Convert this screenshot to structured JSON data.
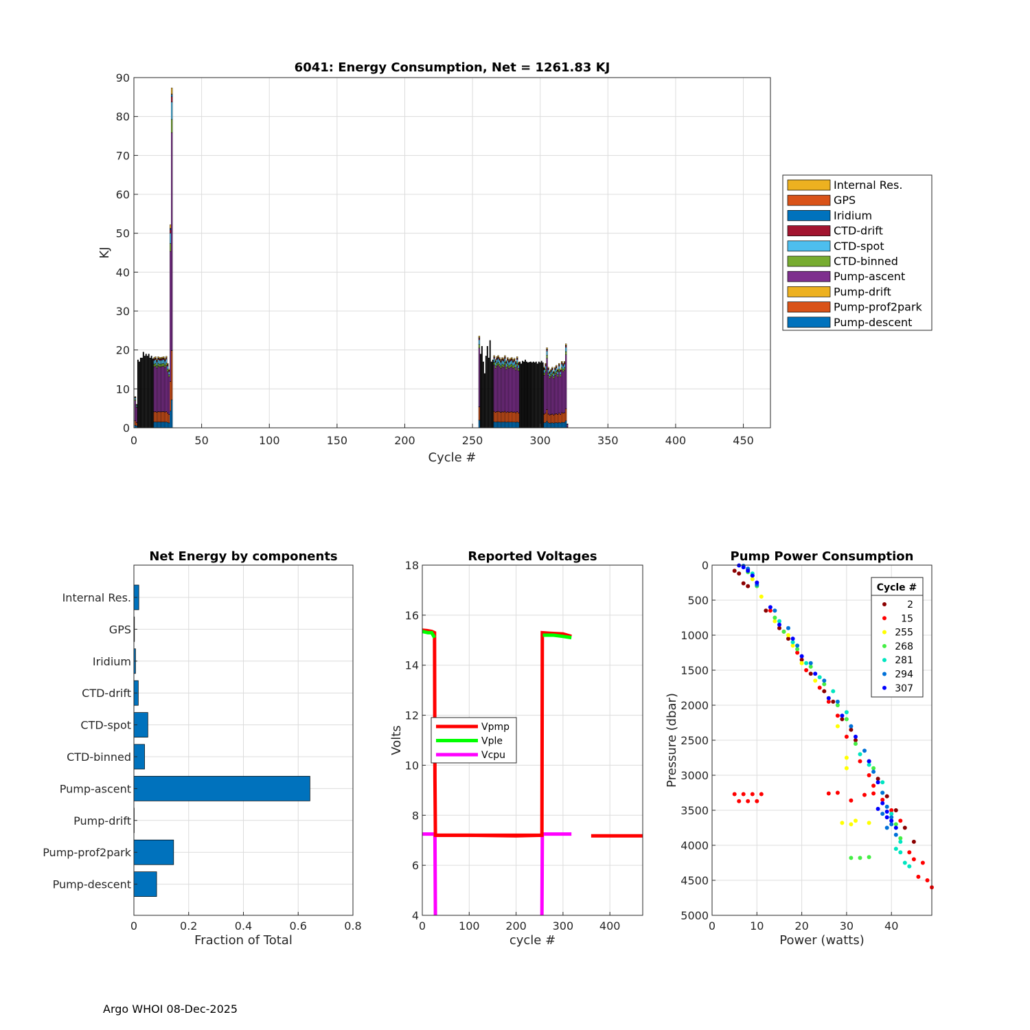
{
  "footer": "Argo WHOI 08-Dec-2025",
  "chart_data": [
    {
      "id": "energy",
      "type": "bar",
      "stacked": true,
      "title": "6041: Energy Consumption,  Net = 1261.83 KJ",
      "xlabel": "Cycle #",
      "ylabel": "KJ",
      "xlim": [
        0,
        470
      ],
      "ylim": [
        0,
        90
      ],
      "xticks": [
        0,
        50,
        100,
        150,
        200,
        250,
        300,
        350,
        400,
        450
      ],
      "yticks": [
        0,
        10,
        20,
        30,
        40,
        50,
        60,
        70,
        80,
        90
      ],
      "grid": true,
      "legend_placement": "right",
      "legend": [
        {
          "name": "Internal Res.",
          "color": "#EDB120"
        },
        {
          "name": "GPS",
          "color": "#D95319"
        },
        {
          "name": "Iridium",
          "color": "#0072BD"
        },
        {
          "name": "CTD-drift",
          "color": "#A2142F"
        },
        {
          "name": "CTD-spot",
          "color": "#4DBEEE"
        },
        {
          "name": "CTD-binned",
          "color": "#77AC30"
        },
        {
          "name": "Pump-ascent",
          "color": "#7E2F8E"
        },
        {
          "name": "Pump-drift",
          "color": "#EDB120"
        },
        {
          "name": "Pump-prof2park",
          "color": "#D95319"
        },
        {
          "name": "Pump-descent",
          "color": "#0072BD"
        }
      ],
      "component_order": [
        "Pump-descent",
        "Pump-prof2park",
        "Pump-drift",
        "Pump-ascent",
        "CTD-binned",
        "CTD-spot",
        "CTD-drift",
        "Iridium",
        "GPS",
        "Internal Res."
      ],
      "cycles": [
        1,
        2,
        3,
        4,
        5,
        6,
        7,
        8,
        9,
        10,
        11,
        12,
        13,
        14,
        15,
        16,
        17,
        18,
        19,
        20,
        21,
        22,
        23,
        24,
        25,
        26,
        27,
        28,
        255,
        256,
        257,
        258,
        259,
        260,
        261,
        262,
        263,
        264,
        265,
        266,
        267,
        268,
        269,
        270,
        271,
        272,
        273,
        274,
        275,
        276,
        277,
        278,
        279,
        280,
        281,
        282,
        283,
        284,
        285,
        286,
        287,
        288,
        289,
        290,
        291,
        292,
        293,
        294,
        295,
        296,
        297,
        298,
        299,
        300,
        301,
        302,
        303,
        304,
        305,
        306,
        307,
        308,
        309,
        310,
        311,
        312,
        313,
        314,
        315,
        316,
        317,
        318,
        319,
        320
      ],
      "totals": [
        8,
        6,
        17.5,
        17,
        18,
        18,
        19.5,
        18.5,
        19,
        18.5,
        19,
        18,
        18.5,
        17.8,
        18,
        18.2,
        17.6,
        18.2,
        18,
        18,
        18.1,
        18.2,
        17.8,
        18.3,
        16.5,
        15,
        52,
        87,
        23.5,
        19,
        21,
        17,
        14,
        18.5,
        21,
        18,
        22.5,
        17,
        17.5,
        18.5,
        17.5,
        18.2,
        18.5,
        18,
        17.5,
        18,
        17.8,
        18.5,
        17.2,
        18,
        17.5,
        17.8,
        18,
        17.5,
        17.8,
        17,
        18.2,
        16.8,
        17,
        16.5,
        17.2,
        17,
        17.5,
        17,
        16.8,
        16.9,
        17,
        16.8,
        17,
        16.8,
        17,
        16.5,
        17,
        16.8,
        17.2,
        16.8,
        15.5,
        16.5,
        20.5,
        15.5,
        14.5,
        15,
        15.5,
        14.5,
        15.5,
        16,
        15,
        16.5,
        15,
        17,
        16.5,
        17,
        21.5,
        1
      ]
    },
    {
      "id": "fractions",
      "type": "bar",
      "orientation": "horizontal",
      "title": "Net Energy by components",
      "xlabel": "Fraction of Total",
      "ylabel": "",
      "xlim": [
        0,
        0.8
      ],
      "xticks": [
        0,
        0.2,
        0.4,
        0.6,
        0.8
      ],
      "xtick_labels": [
        "0",
        "0.2",
        "0.4",
        "0.6",
        "0.8"
      ],
      "grid": true,
      "bar_color": "#0072BD",
      "categories": [
        "Internal Res.",
        "GPS",
        "Iridium",
        "CTD-drift",
        "CTD-spot",
        "CTD-binned",
        "Pump-ascent",
        "Pump-drift",
        "Pump-prof2park",
        "Pump-descent"
      ],
      "values": [
        0.018,
        0.002,
        0.006,
        0.016,
        0.051,
        0.039,
        0.643,
        0.001,
        0.145,
        0.083
      ]
    },
    {
      "id": "voltages",
      "type": "line",
      "title": "Reported Voltages",
      "xlabel": "cycle #",
      "ylabel": "Volts",
      "xlim": [
        0,
        470
      ],
      "ylim": [
        4,
        18
      ],
      "xticks": [
        0,
        100,
        200,
        300,
        400
      ],
      "yticks": [
        4,
        6,
        8,
        10,
        12,
        14,
        16,
        18
      ],
      "grid": true,
      "legend_placement": "middle-left",
      "series": [
        {
          "name": "Vpmp",
          "color": "#FF0000",
          "segments": [
            [
              [
                0,
                15.4
              ],
              [
                10,
                15.38
              ],
              [
                20,
                15.35
              ],
              [
                26,
                15.3
              ],
              [
                27,
                9.5
              ],
              [
                28,
                7.2
              ],
              [
                255,
                7.2
              ],
              [
                256,
                15.3
              ],
              [
                270,
                15.28
              ],
              [
                300,
                15.25
              ],
              [
                318,
                15.15
              ]
            ],
            [
              [
                28,
                7.2
              ],
              [
                100,
                7.2
              ],
              [
                200,
                7.18
              ],
              [
                255,
                7.2
              ]
            ],
            [
              [
                360,
                7.18
              ],
              [
                470,
                7.18
              ]
            ]
          ]
        },
        {
          "name": "Vple",
          "color": "#00FF00",
          "segments": [
            [
              [
                0,
                15.35
              ],
              [
                12,
                15.3
              ],
              [
                20,
                15.3
              ],
              [
                26,
                15.1
              ]
            ],
            [
              [
                257,
                15.2
              ],
              [
                280,
                15.2
              ],
              [
                300,
                15.15
              ],
              [
                318,
                15.1
              ]
            ]
          ]
        },
        {
          "name": "Vcpu",
          "color": "#FF00FF",
          "segments": [
            [
              [
                0,
                7.25
              ],
              [
                27,
                7.25
              ],
              [
                28,
                4
              ]
            ],
            [
              [
                255,
                4
              ],
              [
                256,
                7.25
              ],
              [
                318,
                7.25
              ]
            ]
          ]
        }
      ]
    },
    {
      "id": "pump",
      "type": "scatter",
      "title": "Pump Power Consumption",
      "xlabel": "Power (watts)",
      "ylabel": "Pressure (dbar)",
      "xlim": [
        0,
        49
      ],
      "ylim": [
        0,
        5000
      ],
      "y_reversed": true,
      "xticks": [
        0,
        10,
        20,
        30,
        40
      ],
      "yticks": [
        0,
        500,
        1000,
        1500,
        2000,
        2500,
        3000,
        3500,
        4000,
        4500,
        5000
      ],
      "grid": true,
      "legend_title": "Cycle #",
      "legend_placement": "top-right",
      "series": [
        {
          "name": "2",
          "color": "#8B0000",
          "points": [
            [
              5,
              80
            ],
            [
              6,
              120
            ],
            [
              7,
              260
            ],
            [
              8,
              300
            ],
            [
              12,
              650
            ],
            [
              15,
              900
            ],
            [
              17,
              1050
            ],
            [
              20,
              1350
            ],
            [
              22,
              1550
            ],
            [
              25,
              1800
            ],
            [
              27,
              1950
            ],
            [
              29,
              2200
            ],
            [
              31,
              2350
            ],
            [
              32,
              2500
            ],
            [
              35,
              2800
            ],
            [
              37,
              3050
            ],
            [
              39,
              3300
            ],
            [
              41,
              3500
            ],
            [
              43,
              3750
            ],
            [
              45,
              3950
            ]
          ]
        },
        {
          "name": "15",
          "color": "#FF0000",
          "points": [
            [
              8,
              60
            ],
            [
              9,
              150
            ],
            [
              10,
              250
            ],
            [
              13,
              650
            ],
            [
              16,
              950
            ],
            [
              19,
              1250
            ],
            [
              21,
              1500
            ],
            [
              24,
              1750
            ],
            [
              26,
              1950
            ],
            [
              28,
              2150
            ],
            [
              30,
              2450
            ],
            [
              33,
              2800
            ],
            [
              35,
              3000
            ],
            [
              36,
              3150
            ],
            [
              38,
              3350
            ],
            [
              40,
              3500
            ],
            [
              42,
              3650
            ],
            [
              44,
              4100
            ],
            [
              45,
              4200
            ],
            [
              47,
              4250
            ],
            [
              48,
              4500
            ],
            [
              49,
              4600
            ],
            [
              46,
              4450
            ],
            [
              5,
              3270
            ],
            [
              7,
              3270
            ],
            [
              9,
              3270
            ],
            [
              11,
              3270
            ],
            [
              6,
              3370
            ],
            [
              8,
              3370
            ],
            [
              10,
              3370
            ],
            [
              26,
              3260
            ],
            [
              28,
              3250
            ],
            [
              31,
              3360
            ],
            [
              34,
              3280
            ],
            [
              36,
              3260
            ]
          ]
        },
        {
          "name": "255",
          "color": "#FFFF00",
          "points": [
            [
              9,
              200
            ],
            [
              11,
              450
            ],
            [
              14,
              800
            ],
            [
              17,
              1000
            ],
            [
              18,
              1150
            ],
            [
              20,
              1400
            ],
            [
              23,
              1650
            ],
            [
              26,
              1900
            ],
            [
              28,
              2300
            ],
            [
              30,
              2750
            ],
            [
              30,
              2900
            ],
            [
              29,
              3680
            ],
            [
              31,
              3700
            ],
            [
              32,
              3650
            ],
            [
              35,
              3680
            ]
          ]
        },
        {
          "name": "268",
          "color": "#44EE44",
          "points": [
            [
              8,
              100
            ],
            [
              10,
              300
            ],
            [
              14,
              750
            ],
            [
              16,
              950
            ],
            [
              19,
              1200
            ],
            [
              22,
              1450
            ],
            [
              25,
              1700
            ],
            [
              28,
              2000
            ],
            [
              30,
              2200
            ],
            [
              32,
              2550
            ],
            [
              36,
              2900
            ],
            [
              38,
              3250
            ],
            [
              41,
              3700
            ],
            [
              42,
              3900
            ],
            [
              31,
              4180
            ],
            [
              33,
              4180
            ],
            [
              35,
              4170
            ]
          ]
        },
        {
          "name": "281",
          "color": "#00E5C0",
          "points": [
            [
              7,
              20
            ],
            [
              9,
              120
            ],
            [
              15,
              800
            ],
            [
              18,
              1100
            ],
            [
              21,
              1400
            ],
            [
              24,
              1600
            ],
            [
              27,
              1800
            ],
            [
              30,
              2100
            ],
            [
              33,
              2700
            ],
            [
              35,
              2850
            ],
            [
              38,
              3100
            ],
            [
              40,
              3550
            ],
            [
              42,
              3950
            ],
            [
              42,
              4100
            ],
            [
              43,
              4250
            ],
            [
              44,
              4300
            ],
            [
              41,
              4050
            ]
          ]
        },
        {
          "name": "294",
          "color": "#0070D8",
          "points": [
            [
              7,
              10
            ],
            [
              8,
              50
            ],
            [
              10,
              280
            ],
            [
              14,
              650
            ],
            [
              17,
              900
            ],
            [
              19,
              1150
            ],
            [
              22,
              1400
            ],
            [
              25,
              1650
            ],
            [
              28,
              1950
            ],
            [
              31,
              2300
            ],
            [
              34,
              2650
            ],
            [
              36,
              2950
            ],
            [
              38,
              3250
            ],
            [
              39,
              3450
            ],
            [
              40,
              3600
            ],
            [
              39,
              3750
            ],
            [
              41,
              3850
            ],
            [
              40,
              3700
            ],
            [
              38,
              3550
            ]
          ]
        },
        {
          "name": "307",
          "color": "#0000FF",
          "points": [
            [
              6,
              5
            ],
            [
              7,
              30
            ],
            [
              8,
              80
            ],
            [
              9,
              150
            ],
            [
              10,
              250
            ],
            [
              13,
              600
            ],
            [
              15,
              850
            ],
            [
              18,
              1050
            ],
            [
              20,
              1300
            ],
            [
              23,
              1550
            ],
            [
              26,
              1900
            ],
            [
              29,
              2150
            ],
            [
              32,
              2450
            ],
            [
              35,
              2800
            ],
            [
              37,
              3100
            ],
            [
              38,
              3400
            ],
            [
              39,
              3600
            ],
            [
              40,
              3650
            ],
            [
              41,
              3750
            ],
            [
              39,
              3520
            ],
            [
              37,
              3480
            ]
          ]
        }
      ]
    }
  ]
}
